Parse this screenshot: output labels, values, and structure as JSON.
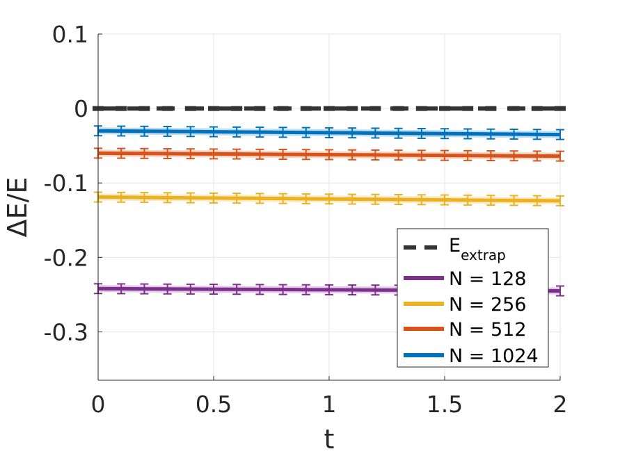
{
  "chart_data": {
    "type": "line",
    "title": "",
    "xlabel": "t",
    "ylabel": "ΔE/E",
    "xlim": [
      0,
      2
    ],
    "ylim": [
      -0.365,
      0.1
    ],
    "xticks": [
      "0",
      "0.5",
      "1",
      "1.5",
      "2"
    ],
    "yticks": [
      "0.1",
      "0",
      "-0.1",
      "-0.2",
      "-0.3"
    ],
    "grid": true,
    "legend_placement": "bottom-right",
    "reference": {
      "name": "E",
      "name_sub": "extrap",
      "value": 0,
      "style": "dashed",
      "color": "#333333"
    },
    "series": [
      {
        "name": "N = 128",
        "color": "#7E2F8E",
        "y_start": -0.242,
        "y_end": -0.245
      },
      {
        "name": "N = 256",
        "color": "#EDB120",
        "y_start": -0.119,
        "y_end": -0.124
      },
      {
        "name": "N = 512",
        "color": "#D95319",
        "y_start": -0.06,
        "y_end": -0.064
      },
      {
        "name": "N = 1024",
        "color": "#0072BD",
        "y_start": -0.03,
        "y_end": -0.035
      }
    ]
  }
}
